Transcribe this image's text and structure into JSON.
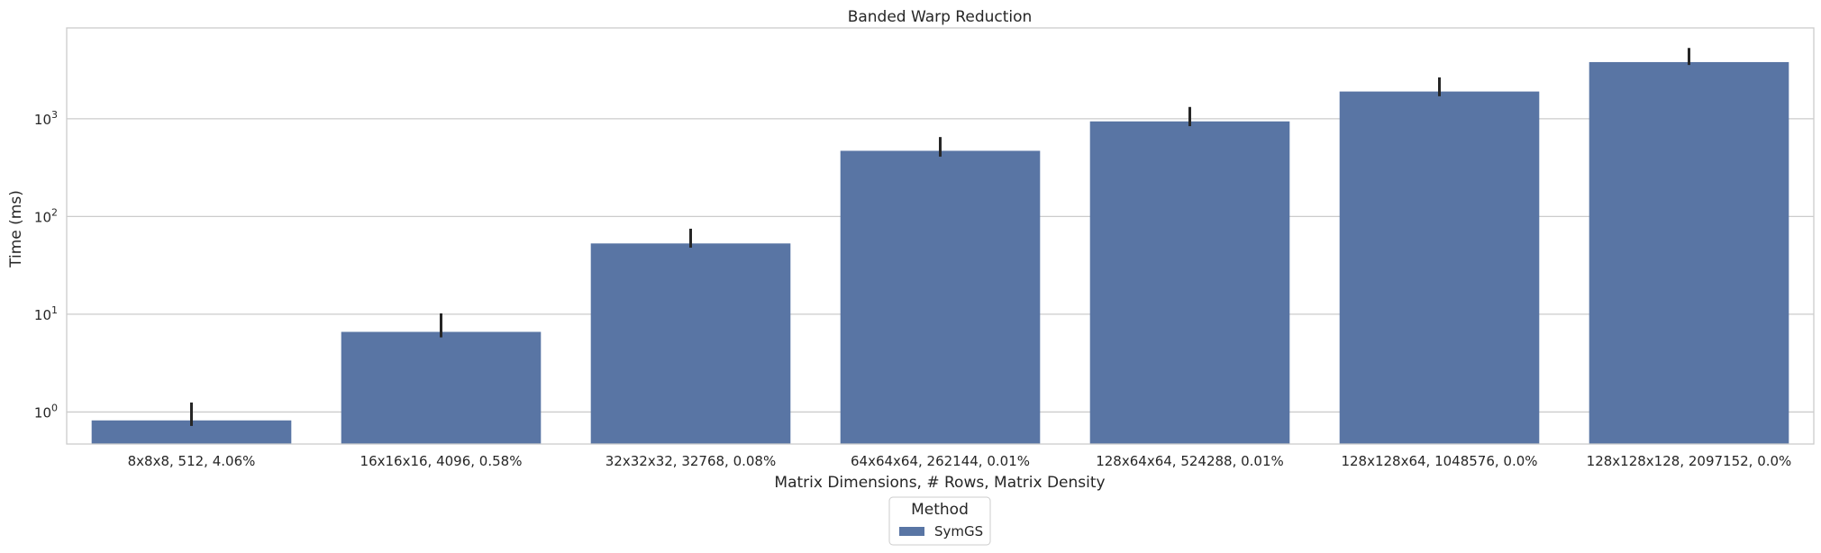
{
  "chart_data": {
    "type": "bar",
    "title": "Banded Warp Reduction",
    "xlabel": "Matrix Dimensions, # Rows, Matrix Density",
    "ylabel": "Time (ms)",
    "yscale": "log",
    "ylim": [
      0.47,
      8500
    ],
    "yticks": [
      {
        "value": 1,
        "label": "10",
        "exp": "0"
      },
      {
        "value": 10,
        "label": "10",
        "exp": "1"
      },
      {
        "value": 100,
        "label": "10",
        "exp": "2"
      },
      {
        "value": 1000,
        "label": "10",
        "exp": "3"
      }
    ],
    "categories": [
      "8x8x8, 512, 4.06%",
      "16x16x16, 4096, 0.58%",
      "32x32x32, 32768, 0.08%",
      "64x64x64, 262144, 0.01%",
      "128x64x64, 524288, 0.01%",
      "128x128x64, 1048576, 0.0%",
      "128x128x128, 2097152, 0.0%"
    ],
    "series": [
      {
        "name": "SymGS",
        "color": "#5975a4",
        "values": [
          0.82,
          6.6,
          53,
          470,
          940,
          1900,
          3800
        ],
        "error_low": [
          0.72,
          5.8,
          48,
          410,
          840,
          1700,
          3550
        ],
        "error_high": [
          1.25,
          10.2,
          75,
          650,
          1320,
          2650,
          5300
        ]
      }
    ],
    "grid": true,
    "legend": {
      "title": "Method",
      "placement": "bottom-center"
    }
  }
}
